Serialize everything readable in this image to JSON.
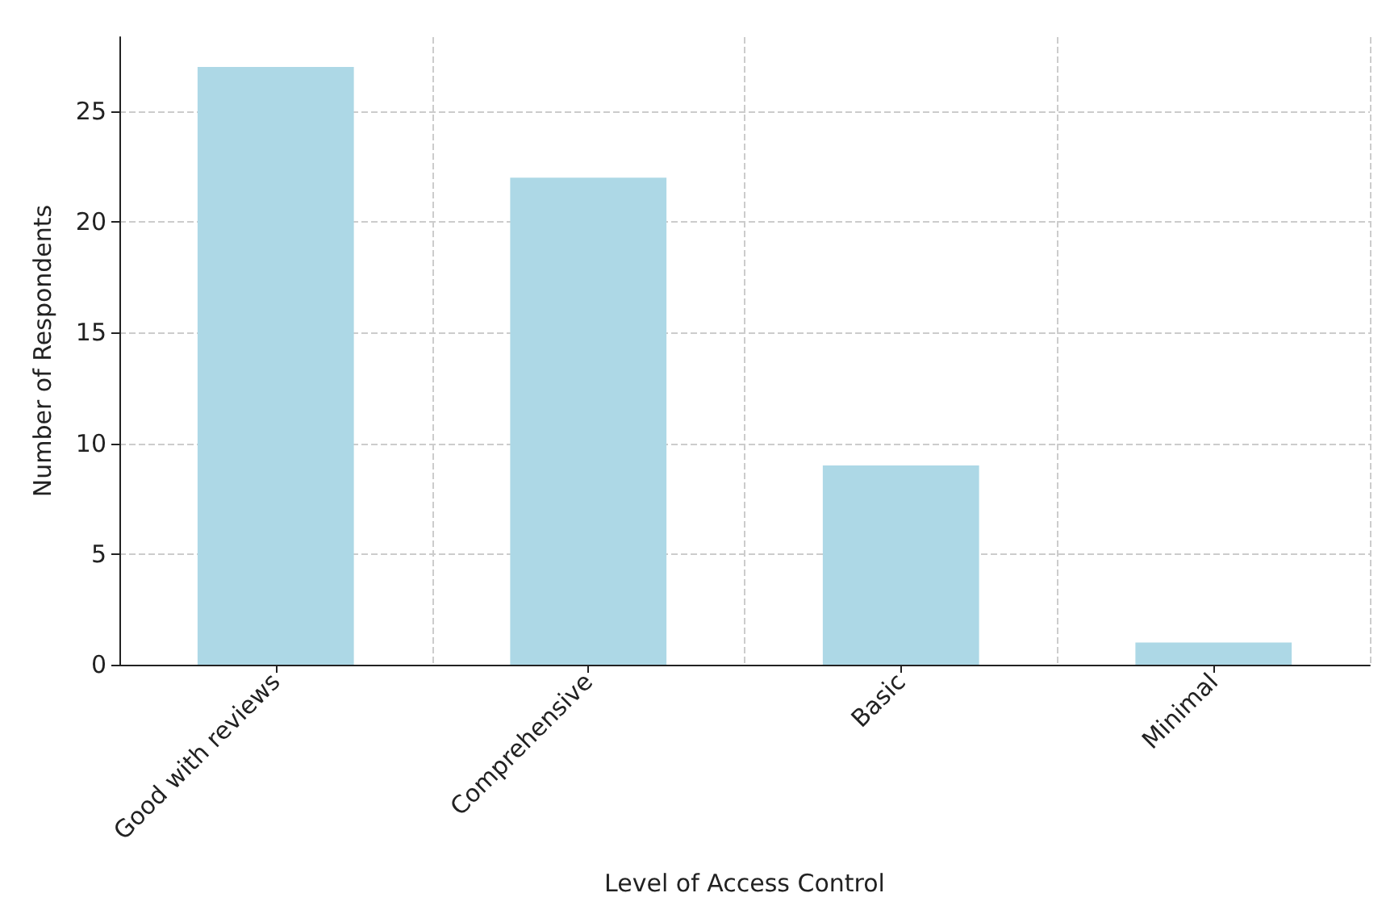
{
  "chart_data": {
    "type": "bar",
    "xlabel": "Level of Access Control",
    "ylabel": "Number of Respondents",
    "categories": [
      "Good with reviews",
      "Comprehensive",
      "Basic",
      "Minimal"
    ],
    "values": [
      27,
      22,
      9,
      1
    ],
    "color": "#add8e6",
    "ylim": [
      0,
      28.35
    ],
    "yticks": [
      0,
      5,
      10,
      15,
      20,
      25
    ],
    "grid": true
  }
}
